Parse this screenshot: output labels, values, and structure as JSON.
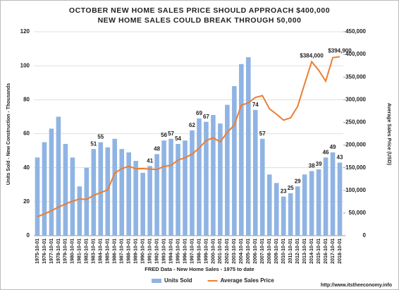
{
  "chart_data": {
    "type": "bar_line",
    "title": "OCTOBER  NEW HOME SALES PRICE SHOULD APPROACH $400,000",
    "subtitle": "NEW HOME SALES COULD BREAK THROUGH 50,000",
    "x_label": "FRED Data - New Home Sales - 1975 to date",
    "y_label": "Units Sold - New Construction - Thousands",
    "y2_label": "Average Sales Price (USD)",
    "source": "http://www.itstheeconomy.info",
    "categories": [
      "1975-10-01",
      "1976-10-01",
      "1977-10-01",
      "1978-10-01",
      "1979-10-01",
      "1980-10-01",
      "1981-10-01",
      "1982-10-01",
      "1983-10-01",
      "1984-10-01",
      "1985-10-01",
      "1986-10-01",
      "1987-10-01",
      "1988-10-01",
      "1989-10-01",
      "1990-10-01",
      "1991-10-01",
      "1992-10-01",
      "1993-10-01",
      "1994-10-01",
      "1995-10-01",
      "1996-10-01",
      "1997-10-01",
      "1998-10-01",
      "1999-10-01",
      "2000-10-01",
      "2001-10-01",
      "2002-10-01",
      "2003-10-01",
      "2004-10-01",
      "2005-10-01",
      "2006-10-01",
      "2007-10-01",
      "2008-10-01",
      "2009-10-01",
      "2010-10-01",
      "2011-10-01",
      "2012-10-01",
      "2013-10-01",
      "2014-10-01",
      "2015-10-01",
      "2016-10-01",
      "2017-10-01",
      "2018-10-01"
    ],
    "series": [
      {
        "name": "Units Sold",
        "kind": "bar",
        "color": "#8fb4e3",
        "values": [
          46,
          55,
          63,
          70,
          54,
          46,
          29,
          40,
          51,
          55,
          52,
          57,
          51,
          49,
          44,
          37,
          41,
          48,
          56,
          57,
          54,
          56,
          62,
          69,
          67,
          71,
          66,
          77,
          88,
          101,
          105,
          74,
          57,
          36,
          31,
          23,
          25,
          29,
          36,
          38,
          39,
          46,
          49,
          43
        ],
        "value_labels": [
          null,
          null,
          null,
          null,
          null,
          null,
          null,
          null,
          "51",
          "55",
          null,
          null,
          null,
          null,
          null,
          null,
          "41",
          "48",
          "56",
          "57",
          "54",
          null,
          "62",
          "69",
          "67",
          null,
          null,
          null,
          null,
          null,
          null,
          "74",
          "57",
          null,
          null,
          "23",
          "25",
          "29",
          null,
          "38",
          "39",
          "46",
          "49",
          "43"
        ]
      },
      {
        "name": "Average Sales Price",
        "kind": "line",
        "axis": "y2",
        "color": "#ed7d31",
        "values": [
          42000,
          48000,
          55000,
          63000,
          70000,
          76000,
          81000,
          80000,
          89000,
          95000,
          101000,
          138000,
          148000,
          153000,
          148000,
          148000,
          147000,
          146000,
          153000,
          155000,
          167000,
          172000,
          180000,
          193000,
          210000,
          216000,
          207000,
          228000,
          244000,
          288000,
          293000,
          305000,
          309000,
          280000,
          268000,
          255000,
          260000,
          285000,
          335000,
          384000,
          365000,
          341000,
          393000,
          394900
        ],
        "value_labels": [
          null,
          null,
          null,
          null,
          null,
          null,
          null,
          null,
          null,
          null,
          null,
          null,
          null,
          null,
          null,
          null,
          null,
          null,
          null,
          null,
          null,
          null,
          null,
          null,
          null,
          null,
          null,
          null,
          null,
          null,
          null,
          null,
          null,
          null,
          null,
          null,
          null,
          null,
          null,
          "$384,000",
          null,
          null,
          null,
          "$394,900"
        ]
      }
    ],
    "ylim": [
      0,
      120
    ],
    "yticks": [
      0,
      20,
      40,
      60,
      80,
      100,
      120
    ],
    "y2lim": [
      0,
      450000
    ],
    "y2ticks": [
      0,
      {
        "value": 50000,
        "label": "50,000"
      },
      {
        "value": 100000,
        "label": "100,000"
      },
      {
        "value": 150000,
        "label": "150,000"
      },
      {
        "value": 200000,
        "label": "200,000"
      },
      {
        "value": 250000,
        "label": "250,000"
      },
      {
        "value": 300000,
        "label": "300,000"
      },
      {
        "value": 350000,
        "label": "350,000"
      },
      {
        "value": 400000,
        "label": "400,000"
      },
      {
        "value": 450000,
        "label": "450,000"
      }
    ],
    "grid": true,
    "legend": "bottom"
  }
}
